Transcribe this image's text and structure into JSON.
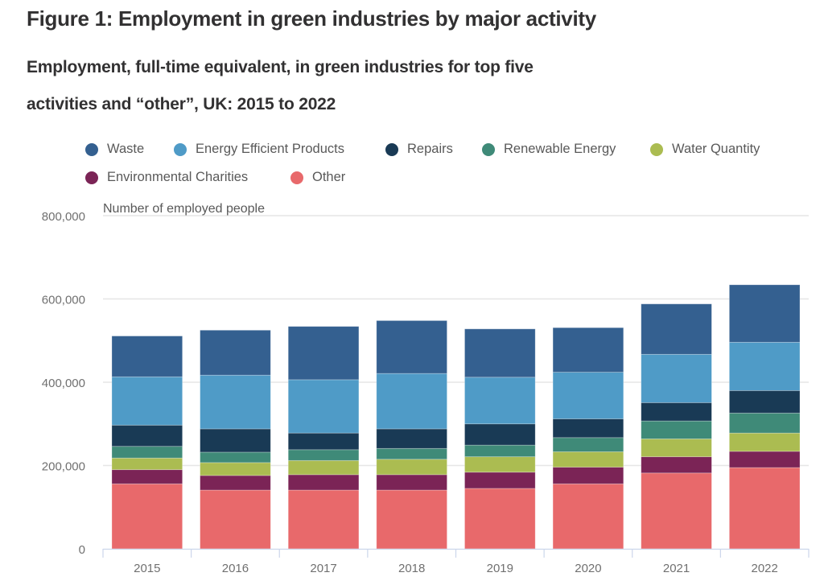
{
  "header": {
    "title": "Figure 1: Employment in green industries by major activity",
    "subtitle_line1": "Employment, full-time equivalent, in green industries for top five",
    "subtitle_line2": "activities and “other”, UK: 2015 to 2022"
  },
  "chart_data": {
    "type": "bar",
    "stacked": true,
    "title": "Figure 1: Employment in green industries by major activity",
    "subtitle": "Employment, full-time equivalent, in green industries for top five activities and “other”, UK: 2015 to 2022",
    "xlabel": "",
    "ylabel": "Number of employed people",
    "ylim": [
      0,
      800000
    ],
    "yticks": [
      0,
      200000,
      400000,
      600000,
      800000
    ],
    "ytick_labels": [
      "0",
      "200,000",
      "400,000",
      "600,000",
      "800,000"
    ],
    "grid": true,
    "legend_position": "top-left",
    "categories": [
      "2015",
      "2016",
      "2017",
      "2018",
      "2019",
      "2020",
      "2021",
      "2022"
    ],
    "series": [
      {
        "name": "Other",
        "color": "#e8696b",
        "values": [
          156000,
          141000,
          141000,
          141000,
          145000,
          156000,
          182000,
          195000
        ]
      },
      {
        "name": "Environmental Charities",
        "color": "#7b2456",
        "values": [
          34000,
          35000,
          37000,
          37000,
          39000,
          40000,
          39000,
          39000
        ]
      },
      {
        "name": "Water Quantity",
        "color": "#abbc51",
        "values": [
          28000,
          31000,
          34000,
          37000,
          37000,
          37000,
          43000,
          44000
        ]
      },
      {
        "name": "Renewable Energy",
        "color": "#3f8a78",
        "values": [
          28000,
          25000,
          26000,
          26000,
          28000,
          34000,
          43000,
          48000
        ]
      },
      {
        "name": "Repairs",
        "color": "#193a55",
        "values": [
          51000,
          56000,
          40000,
          47000,
          51000,
          45000,
          44000,
          54000
        ]
      },
      {
        "name": "Energy Efficient Products",
        "color": "#4f9bc7",
        "values": [
          116000,
          129000,
          128000,
          133000,
          112000,
          112000,
          116000,
          116000
        ]
      },
      {
        "name": "Waste",
        "color": "#346090",
        "values": [
          98000,
          108000,
          128000,
          127000,
          116000,
          107000,
          121000,
          138000
        ]
      }
    ]
  },
  "legend": [
    {
      "label": "Waste",
      "color": "#346090"
    },
    {
      "label": "Energy Efficient Products",
      "color": "#4f9bc7"
    },
    {
      "label": "Repairs",
      "color": "#193a55"
    },
    {
      "label": "Renewable Energy",
      "color": "#3f8a78"
    },
    {
      "label": "Water Quantity",
      "color": "#abbc51"
    },
    {
      "label": "Environmental Charities",
      "color": "#7b2456"
    },
    {
      "label": "Other",
      "color": "#e8696b"
    }
  ]
}
